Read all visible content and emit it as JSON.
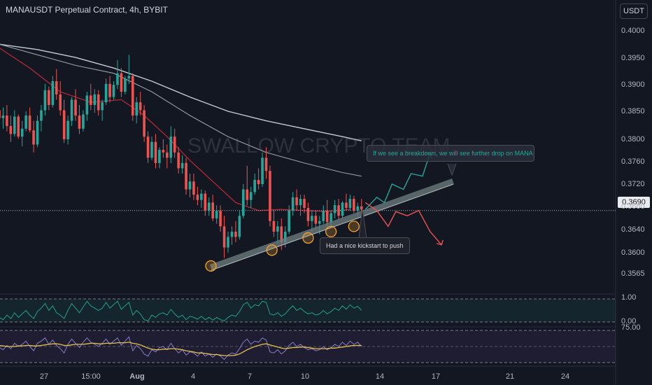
{
  "header": {
    "title": "MANAUSDT Perpetual Contract, 4h, BYBIT",
    "currency_button": "USDT",
    "last_price_label": "0.3690"
  },
  "watermark": "SWALLOW CRYPTO TEAM",
  "annotations": {
    "breakdown_note": "If we see a breakdown, we will see further drop on MANA",
    "kickstart_note": "Had a nice kickstart to push"
  },
  "colors": {
    "background": "#131722",
    "up_candle": "#26a69a",
    "down_candle": "#ef5350",
    "ema_short": "#b22833",
    "ma_long": "#d1d4dc",
    "trendline": "#6f7f80",
    "bull_projection": "#26a69a",
    "bear_projection": "#ef5350",
    "touch_marker": "#f0a030",
    "oscillator_line": "#1fa08a",
    "rsi_line": "#8a7cc4",
    "rsi_signal": "#e6c050"
  },
  "chart_data": {
    "type": "candlestick",
    "title": "MANAUSDT Perpetual Contract, 4h, BYBIT",
    "y_axis": {
      "ticks": [
        "0.4000",
        "0.3950",
        "0.3900",
        "0.3850",
        "0.3800",
        "0.3760",
        "0.3720",
        "0.3680",
        "0.3640",
        "0.3600",
        "0.3565"
      ],
      "tick_values": [
        0.4,
        0.395,
        0.39,
        0.385,
        0.38,
        0.376,
        0.372,
        0.368,
        0.364,
        0.36,
        0.3565
      ]
    },
    "x_axis": {
      "ticks": [
        "27",
        "15:00",
        "Aug",
        "4",
        "7",
        "10",
        "14",
        "17",
        "21",
        "24"
      ],
      "bold_ticks": [
        "Aug"
      ]
    },
    "last_price": 0.369,
    "candles": [
      [
        0.388,
        0.3895,
        0.3855,
        0.3865
      ],
      [
        0.3865,
        0.3885,
        0.3845,
        0.387
      ],
      [
        0.387,
        0.389,
        0.384,
        0.385
      ],
      [
        0.385,
        0.387,
        0.382,
        0.3835
      ],
      [
        0.3835,
        0.388,
        0.383,
        0.3868
      ],
      [
        0.3868,
        0.3872,
        0.3826,
        0.383
      ],
      [
        0.383,
        0.386,
        0.3812,
        0.3845
      ],
      [
        0.3845,
        0.3878,
        0.384,
        0.387
      ],
      [
        0.387,
        0.3885,
        0.3838,
        0.3842
      ],
      [
        0.3842,
        0.386,
        0.38,
        0.3815
      ],
      [
        0.3815,
        0.387,
        0.381,
        0.386
      ],
      [
        0.386,
        0.389,
        0.384,
        0.388
      ],
      [
        0.388,
        0.393,
        0.387,
        0.3918
      ],
      [
        0.3918,
        0.3925,
        0.388,
        0.389
      ],
      [
        0.389,
        0.3945,
        0.3885,
        0.3935
      ],
      [
        0.3935,
        0.3958,
        0.39,
        0.391
      ],
      [
        0.391,
        0.3935,
        0.387,
        0.388
      ],
      [
        0.388,
        0.39,
        0.3818,
        0.3825
      ],
      [
        0.3825,
        0.387,
        0.3815,
        0.386
      ],
      [
        0.386,
        0.3905,
        0.385,
        0.39
      ],
      [
        0.39,
        0.392,
        0.386,
        0.387
      ],
      [
        0.387,
        0.389,
        0.3835,
        0.3845
      ],
      [
        0.3845,
        0.388,
        0.384,
        0.3872
      ],
      [
        0.3872,
        0.3915,
        0.386,
        0.3908
      ],
      [
        0.3908,
        0.393,
        0.388,
        0.389
      ],
      [
        0.389,
        0.392,
        0.3875,
        0.391
      ],
      [
        0.391,
        0.3918,
        0.387,
        0.388
      ],
      [
        0.388,
        0.39,
        0.386,
        0.3895
      ],
      [
        0.3895,
        0.394,
        0.389,
        0.393
      ],
      [
        0.393,
        0.3945,
        0.3895,
        0.3905
      ],
      [
        0.3905,
        0.3935,
        0.39,
        0.3928
      ],
      [
        0.3928,
        0.3975,
        0.392,
        0.395
      ],
      [
        0.395,
        0.396,
        0.3905,
        0.3915
      ],
      [
        0.3915,
        0.3945,
        0.391,
        0.394
      ],
      [
        0.394,
        0.3985,
        0.393,
        0.3945
      ],
      [
        0.3945,
        0.395,
        0.386,
        0.387
      ],
      [
        0.387,
        0.3905,
        0.3855,
        0.3895
      ],
      [
        0.3895,
        0.3915,
        0.387,
        0.388
      ],
      [
        0.388,
        0.389,
        0.382,
        0.383
      ],
      [
        0.383,
        0.384,
        0.378,
        0.379
      ],
      [
        0.379,
        0.383,
        0.3785,
        0.382
      ],
      [
        0.382,
        0.3835,
        0.377,
        0.378
      ],
      [
        0.378,
        0.381,
        0.377,
        0.3805
      ],
      [
        0.3805,
        0.3825,
        0.379,
        0.38
      ],
      [
        0.38,
        0.3815,
        0.377,
        0.379
      ],
      [
        0.379,
        0.385,
        0.378,
        0.383
      ],
      [
        0.383,
        0.3845,
        0.379,
        0.38
      ],
      [
        0.38,
        0.381,
        0.376,
        0.377
      ],
      [
        0.377,
        0.3795,
        0.376,
        0.378
      ],
      [
        0.378,
        0.379,
        0.372,
        0.373
      ],
      [
        0.373,
        0.376,
        0.3715,
        0.3745
      ],
      [
        0.3745,
        0.376,
        0.371,
        0.372
      ],
      [
        0.372,
        0.3735,
        0.37,
        0.371
      ],
      [
        0.371,
        0.373,
        0.3695,
        0.3722
      ],
      [
        0.3722,
        0.3728,
        0.368,
        0.369
      ],
      [
        0.369,
        0.3715,
        0.368,
        0.3705
      ],
      [
        0.3705,
        0.372,
        0.367,
        0.3675
      ],
      [
        0.3675,
        0.37,
        0.3665,
        0.369
      ],
      [
        0.369,
        0.37,
        0.365,
        0.366
      ],
      [
        0.366,
        0.368,
        0.36,
        0.362
      ],
      [
        0.362,
        0.365,
        0.361,
        0.364
      ],
      [
        0.364,
        0.366,
        0.3625,
        0.365
      ],
      [
        0.365,
        0.367,
        0.363,
        0.364
      ],
      [
        0.364,
        0.369,
        0.3635,
        0.368
      ],
      [
        0.368,
        0.374,
        0.3675,
        0.373
      ],
      [
        0.373,
        0.3775,
        0.37,
        0.371
      ],
      [
        0.371,
        0.3735,
        0.3695,
        0.3725
      ],
      [
        0.3725,
        0.376,
        0.372,
        0.3748
      ],
      [
        0.3748,
        0.377,
        0.373,
        0.374
      ],
      [
        0.374,
        0.38,
        0.3735,
        0.379
      ],
      [
        0.379,
        0.381,
        0.375,
        0.3765
      ],
      [
        0.3765,
        0.3775,
        0.366,
        0.367
      ],
      [
        0.367,
        0.369,
        0.364,
        0.365
      ],
      [
        0.365,
        0.367,
        0.3628,
        0.366
      ],
      [
        0.366,
        0.3675,
        0.3615,
        0.363
      ],
      [
        0.363,
        0.366,
        0.362,
        0.365
      ],
      [
        0.365,
        0.37,
        0.3645,
        0.369
      ],
      [
        0.369,
        0.3725,
        0.368,
        0.3715
      ],
      [
        0.3715,
        0.373,
        0.369,
        0.37
      ],
      [
        0.37,
        0.372,
        0.368,
        0.3712
      ],
      [
        0.3712,
        0.372,
        0.3685,
        0.3695
      ],
      [
        0.3695,
        0.3705,
        0.366,
        0.367
      ],
      [
        0.367,
        0.369,
        0.365,
        0.368
      ],
      [
        0.368,
        0.369,
        0.3655,
        0.3665
      ],
      [
        0.3665,
        0.368,
        0.3645,
        0.367
      ],
      [
        0.367,
        0.37,
        0.3665,
        0.369
      ],
      [
        0.369,
        0.371,
        0.366,
        0.3668
      ],
      [
        0.3668,
        0.369,
        0.366,
        0.3685
      ],
      [
        0.3685,
        0.371,
        0.3675,
        0.37
      ],
      [
        0.37,
        0.3712,
        0.3672,
        0.368
      ],
      [
        0.368,
        0.3708,
        0.3675,
        0.3705
      ],
      [
        0.3705,
        0.3722,
        0.369,
        0.3695
      ],
      [
        0.3695,
        0.372,
        0.369,
        0.3712
      ],
      [
        0.3712,
        0.3718,
        0.3685,
        0.369
      ],
      [
        0.369,
        0.3705,
        0.368,
        0.3698
      ],
      [
        0.3698,
        0.3712,
        0.3688,
        0.3692
      ]
    ],
    "ema_short_path": [
      [
        0,
        0.3998
      ],
      [
        8,
        0.396
      ],
      [
        16,
        0.3915
      ],
      [
        24,
        0.3895
      ],
      [
        32,
        0.39
      ],
      [
        38,
        0.387
      ],
      [
        44,
        0.383
      ],
      [
        50,
        0.3785
      ],
      [
        56,
        0.3745
      ],
      [
        62,
        0.3705
      ],
      [
        68,
        0.369
      ],
      [
        74,
        0.3692
      ],
      [
        80,
        0.369
      ],
      [
        86,
        0.3688
      ],
      [
        92,
        0.3692
      ]
    ],
    "ma_mid_path": [
      [
        0,
        0.4005
      ],
      [
        10,
        0.3985
      ],
      [
        20,
        0.3965
      ],
      [
        30,
        0.395
      ],
      [
        40,
        0.3915
      ],
      [
        50,
        0.387
      ],
      [
        60,
        0.383
      ],
      [
        70,
        0.38
      ],
      [
        80,
        0.378
      ],
      [
        90,
        0.3762
      ],
      [
        95,
        0.3755
      ]
    ],
    "ma_long_path": [
      [
        0,
        0.4005
      ],
      [
        10,
        0.3995
      ],
      [
        20,
        0.398
      ],
      [
        30,
        0.396
      ],
      [
        40,
        0.3935
      ],
      [
        50,
        0.3905
      ],
      [
        60,
        0.3878
      ],
      [
        70,
        0.386
      ],
      [
        80,
        0.3845
      ],
      [
        90,
        0.383
      ],
      [
        95,
        0.3822
      ]
    ],
    "trendline": [
      [
        55.5,
        0.3582
      ],
      [
        119,
        0.3745
      ]
    ],
    "touch_points": [
      [
        55.5,
        0.3585
      ],
      [
        71.5,
        0.3615
      ],
      [
        81,
        0.3638
      ],
      [
        87,
        0.365
      ],
      [
        93,
        0.366
      ]
    ],
    "bull_projection": [
      [
        96,
        0.3692
      ],
      [
        99,
        0.3715
      ],
      [
        101,
        0.3705
      ],
      [
        103,
        0.374
      ],
      [
        106,
        0.373
      ],
      [
        108,
        0.376
      ],
      [
        111,
        0.3755
      ],
      [
        113,
        0.38
      ]
    ],
    "bear_projection": [
      [
        96,
        0.3705
      ],
      [
        99,
        0.369
      ],
      [
        102,
        0.366
      ],
      [
        104,
        0.3688
      ],
      [
        107,
        0.368
      ],
      [
        110,
        0.369
      ],
      [
        113,
        0.365
      ],
      [
        116,
        0.3625
      ]
    ],
    "oscillator": {
      "labels": [
        "1.00",
        "0.00"
      ],
      "levels": [
        1.0,
        0.0
      ],
      "values": [
        0.2,
        0.1,
        0.3,
        0.15,
        0.4,
        0.2,
        0.35,
        0.5,
        0.3,
        0.15,
        0.45,
        0.6,
        0.8,
        0.5,
        0.7,
        0.4,
        0.3,
        0.15,
        0.5,
        0.8,
        0.6,
        0.4,
        0.65,
        0.9,
        0.7,
        0.6,
        0.5,
        0.6,
        0.85,
        0.6,
        0.75,
        0.9,
        0.55,
        0.7,
        0.85,
        0.3,
        0.5,
        0.35,
        0.1,
        0.05,
        0.3,
        0.2,
        0.35,
        0.4,
        0.3,
        0.55,
        0.35,
        0.2,
        0.3,
        0.1,
        0.25,
        0.2,
        0.12,
        0.25,
        0.1,
        0.2,
        0.08,
        0.2,
        0.1,
        0.05,
        0.2,
        0.3,
        0.25,
        0.45,
        0.75,
        0.85,
        0.6,
        0.75,
        0.7,
        0.9,
        0.85,
        0.35,
        0.3,
        0.4,
        0.25,
        0.35,
        0.55,
        0.7,
        0.5,
        0.6,
        0.45,
        0.35,
        0.4,
        0.3,
        0.35,
        0.5,
        0.35,
        0.45,
        0.6,
        0.5,
        0.7,
        0.55,
        0.75,
        0.6,
        0.68,
        0.5
      ]
    },
    "rsi": {
      "label": "75.00",
      "values": [
        48,
        44,
        52,
        46,
        56,
        50,
        54,
        60,
        50,
        42,
        56,
        60,
        66,
        54,
        62,
        52,
        46,
        38,
        54,
        64,
        56,
        48,
        58,
        66,
        58,
        54,
        50,
        56,
        64,
        54,
        60,
        66,
        52,
        60,
        68,
        42,
        52,
        46,
        36,
        32,
        44,
        40,
        48,
        50,
        44,
        56,
        46,
        38,
        44,
        34,
        40,
        38,
        32,
        40,
        32,
        36,
        30,
        36,
        32,
        26,
        34,
        38,
        36,
        46,
        58,
        64,
        54,
        60,
        58,
        66,
        62,
        40,
        38,
        44,
        36,
        42,
        52,
        58,
        50,
        54,
        48,
        44,
        46,
        42,
        44,
        50,
        44,
        48,
        54,
        50,
        58,
        52,
        60,
        54,
        58,
        50
      ],
      "signal": [
        52,
        51,
        50,
        50,
        50,
        51,
        51,
        52,
        52,
        51,
        51,
        52,
        53,
        54,
        55,
        55,
        54,
        52,
        52,
        53,
        54,
        54,
        54,
        55,
        56,
        56,
        55,
        55,
        56,
        56,
        56,
        57,
        57,
        57,
        58,
        56,
        55,
        53,
        50,
        47,
        45,
        44,
        44,
        45,
        45,
        46,
        46,
        45,
        44,
        42,
        41,
        40,
        38,
        38,
        37,
        36,
        35,
        35,
        34,
        33,
        33,
        33,
        34,
        36,
        40,
        44,
        47,
        50,
        52,
        54,
        55,
        53,
        51,
        49,
        47,
        46,
        47,
        48,
        48,
        49,
        49,
        48,
        47,
        46,
        46,
        46,
        46,
        47,
        47,
        48,
        49,
        50,
        51,
        52,
        52,
        52
      ]
    }
  }
}
